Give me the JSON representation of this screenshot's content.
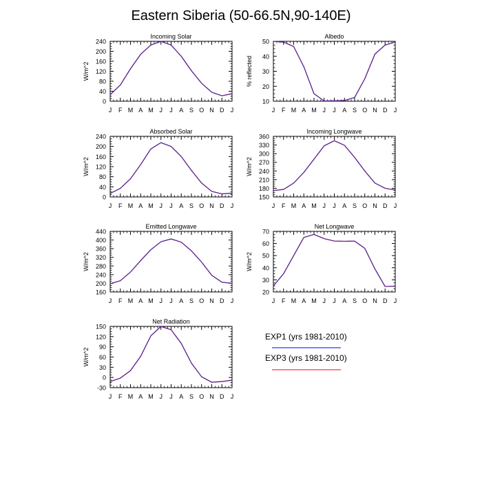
{
  "title": "Eastern Siberia (50-66.5N,90-140E)",
  "months": [
    "J",
    "F",
    "M",
    "A",
    "M",
    "J",
    "J",
    "A",
    "S",
    "O",
    "N",
    "D",
    "J"
  ],
  "colors": {
    "exp1": "#0000ff",
    "exp3": "#ff0000",
    "overlap": "#4b2aa0"
  },
  "legend": [
    {
      "label": "EXP1 (yrs 1981-2010)",
      "color": "#0000ff"
    },
    {
      "label": "EXP3 (yrs 1981-2010)",
      "color": "#ff0000"
    }
  ],
  "chart_data": [
    {
      "type": "line",
      "title": "Incoming Solar",
      "ylabel": "W/m^2",
      "ylim": [
        0,
        240
      ],
      "yticks": [
        0,
        40,
        80,
        120,
        160,
        200,
        240
      ],
      "x": [
        "J",
        "F",
        "M",
        "A",
        "M",
        "J",
        "J",
        "A",
        "S",
        "O",
        "N",
        "D",
        "J"
      ],
      "series": [
        {
          "values": [
            26,
            65,
            130,
            188,
            225,
            240,
            225,
            180,
            122,
            72,
            36,
            22,
            30
          ]
        },
        {
          "values": [
            26,
            65,
            130,
            188,
            225,
            240,
            225,
            180,
            122,
            72,
            36,
            22,
            30
          ]
        }
      ]
    },
    {
      "type": "line",
      "title": "Albedo",
      "ylabel": "% reflected",
      "ylim": [
        10,
        50
      ],
      "yticks": [
        10,
        20,
        30,
        40,
        50
      ],
      "x": [
        "J",
        "F",
        "M",
        "A",
        "M",
        "J",
        "J",
        "A",
        "S",
        "O",
        "N",
        "D",
        "J"
      ],
      "series": [
        {
          "values": [
            50,
            49.5,
            46.5,
            33,
            15,
            10.2,
            10.3,
            10.5,
            12.5,
            25,
            41.5,
            47.5,
            49.5
          ]
        },
        {
          "values": [
            50,
            49.5,
            46.5,
            33,
            15,
            10.2,
            10.3,
            10.5,
            12.5,
            25,
            41.5,
            47.5,
            49.5
          ]
        }
      ]
    },
    {
      "type": "line",
      "title": "Absorbed Solar",
      "ylabel": "W/m^2",
      "ylim": [
        0,
        240
      ],
      "yticks": [
        0,
        40,
        80,
        120,
        160,
        200,
        240
      ],
      "x": [
        "J",
        "F",
        "M",
        "A",
        "M",
        "J",
        "J",
        "A",
        "S",
        "O",
        "N",
        "D",
        "J"
      ],
      "series": [
        {
          "values": [
            14,
            34,
            72,
            128,
            190,
            215,
            200,
            160,
            105,
            55,
            22,
            12,
            15
          ]
        },
        {
          "values": [
            14,
            34,
            72,
            128,
            190,
            215,
            200,
            160,
            105,
            55,
            22,
            12,
            15
          ]
        }
      ]
    },
    {
      "type": "line",
      "title": "Incoming Longwave",
      "ylabel": "W/m^2",
      "ylim": [
        150,
        360
      ],
      "yticks": [
        150,
        180,
        210,
        240,
        270,
        300,
        330,
        360
      ],
      "x": [
        "J",
        "F",
        "M",
        "A",
        "M",
        "J",
        "J",
        "A",
        "S",
        "O",
        "N",
        "D",
        "J"
      ],
      "series": [
        {
          "values": [
            172,
            176,
            198,
            235,
            281,
            327,
            345,
            329,
            287,
            240,
            198,
            180,
            174
          ]
        },
        {
          "values": [
            172,
            176,
            198,
            235,
            281,
            327,
            345,
            329,
            287,
            240,
            198,
            180,
            174
          ]
        }
      ]
    },
    {
      "type": "line",
      "title": "Emitted Longwave",
      "ylabel": "W/m^2",
      "ylim": [
        160,
        440
      ],
      "yticks": [
        160,
        200,
        240,
        280,
        320,
        360,
        400,
        440
      ],
      "x": [
        "J",
        "F",
        "M",
        "A",
        "M",
        "J",
        "J",
        "A",
        "S",
        "O",
        "N",
        "D",
        "J"
      ],
      "series": [
        {
          "values": [
            198,
            212,
            252,
            305,
            355,
            392,
            405,
            390,
            350,
            298,
            237,
            205,
            200
          ]
        },
        {
          "values": [
            198,
            212,
            252,
            305,
            355,
            392,
            405,
            390,
            350,
            298,
            237,
            205,
            200
          ]
        }
      ]
    },
    {
      "type": "line",
      "title": "Net Longwave",
      "ylabel": "W/m^2",
      "ylim": [
        20,
        70
      ],
      "yticks": [
        20,
        30,
        40,
        50,
        60,
        70
      ],
      "x": [
        "J",
        "F",
        "M",
        "A",
        "M",
        "J",
        "J",
        "A",
        "S",
        "O",
        "N",
        "D",
        "J"
      ],
      "series": [
        {
          "values": [
            25,
            35,
            50,
            65,
            67.5,
            64,
            62,
            61.8,
            62,
            56,
            39,
            24.5,
            24.8
          ]
        },
        {
          "values": [
            25,
            35,
            50,
            65,
            67.5,
            64,
            62,
            61.8,
            62,
            56,
            39,
            24.5,
            24.8
          ]
        }
      ]
    },
    {
      "type": "line",
      "title": "Net Radiation",
      "ylabel": "W/m^2",
      "ylim": [
        -30,
        150
      ],
      "yticks": [
        -30,
        0,
        30,
        60,
        90,
        120,
        150
      ],
      "x": [
        "J",
        "F",
        "M",
        "A",
        "M",
        "J",
        "J",
        "A",
        "S",
        "O",
        "N",
        "D",
        "J"
      ],
      "series": [
        {
          "values": [
            -12,
            -2,
            20,
            62,
            122,
            150,
            140,
            100,
            42,
            2,
            -14,
            -12,
            -8
          ]
        },
        {
          "values": [
            -12,
            -2,
            20,
            62,
            122,
            150,
            140,
            100,
            42,
            2,
            -14,
            -12,
            -8
          ]
        }
      ]
    }
  ]
}
